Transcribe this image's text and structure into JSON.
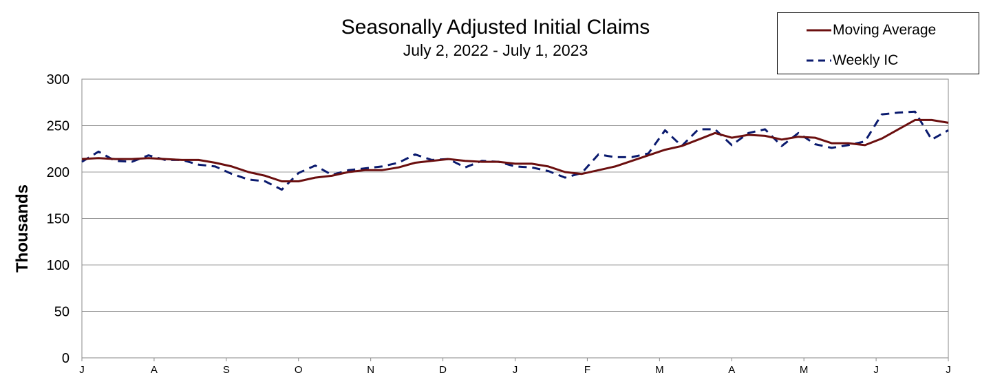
{
  "chart_data": {
    "type": "line",
    "title": "Seasonally Adjusted Initial Claims",
    "subtitle": "July 2, 2022 - July 1, 2023",
    "ylabel": "Thousands",
    "xlabel": "",
    "ylim": [
      0,
      300
    ],
    "yticks": [
      0,
      50,
      100,
      150,
      200,
      250,
      300
    ],
    "xticks": [
      "J",
      "A",
      "S",
      "O",
      "N",
      "D",
      "J",
      "F",
      "M",
      "A",
      "M",
      "J",
      "J"
    ],
    "grid": true,
    "legend_position": "top-right",
    "series": [
      {
        "name": "Moving Average",
        "color": "#6b0f0f",
        "style": "solid",
        "values": [
          214,
          215,
          214,
          214,
          215,
          214,
          213,
          213,
          210,
          206,
          200,
          196,
          190,
          190,
          194,
          196,
          200,
          202,
          202,
          205,
          210,
          212,
          214,
          212,
          211,
          211,
          209,
          209,
          206,
          200,
          198,
          202,
          206,
          212,
          218,
          224,
          228,
          235,
          242,
          237,
          240,
          239,
          235,
          238,
          237,
          231,
          231,
          229,
          236,
          246,
          256,
          256,
          253
        ]
      },
      {
        "name": "Weekly IC",
        "color": "#0a1a6e",
        "style": "dashed",
        "values": [
          211,
          222,
          212,
          211,
          218,
          213,
          213,
          208,
          206,
          198,
          192,
          190,
          181,
          199,
          207,
          197,
          202,
          204,
          206,
          210,
          219,
          213,
          214,
          205,
          212,
          211,
          206,
          205,
          201,
          194,
          199,
          219,
          216,
          216,
          220,
          245,
          228,
          246,
          246,
          229,
          242,
          246,
          228,
          242,
          230,
          226,
          229,
          233,
          262,
          264,
          265,
          235,
          245
        ]
      }
    ]
  }
}
